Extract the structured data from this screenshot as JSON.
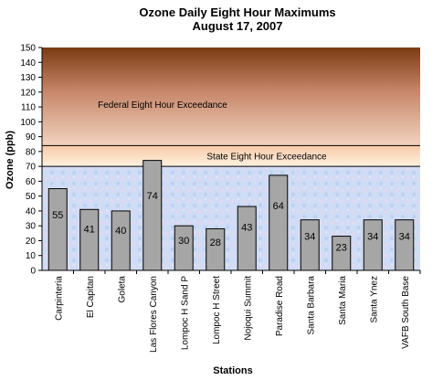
{
  "chart_data": {
    "type": "bar",
    "title": "Ozone Daily Eight Hour Maximums",
    "subtitle": "August 17, 2007",
    "xlabel": "Stations",
    "ylabel": "Ozone (ppb)",
    "ylim": [
      0,
      150
    ],
    "yticks": [
      0,
      10,
      20,
      30,
      40,
      50,
      60,
      70,
      80,
      90,
      100,
      110,
      120,
      130,
      140,
      150
    ],
    "categories": [
      "Carpinteria",
      "El Capitan",
      "Goleta",
      "Las Flores Canyon",
      "Lompoc H Sand P",
      "Lompoc H Street",
      "Nojoqui Summit",
      "Paradise Road",
      "Santa Barbara",
      "Santa Maria",
      "Santa Ynez",
      "VAFB South Base"
    ],
    "values": [
      55,
      41,
      40,
      74,
      30,
      28,
      43,
      64,
      34,
      23,
      34,
      34
    ],
    "data_labels": [
      "55",
      "41",
      "40",
      "74",
      "30",
      "28",
      "43",
      "64",
      "34",
      "23",
      "34",
      "34"
    ],
    "thresholds": [
      {
        "name": "Federal Eight Hour Exceedance",
        "value": 84
      },
      {
        "name": "State Eight Hour Exceedance",
        "value": 70
      }
    ],
    "grid": false,
    "legend": "none",
    "colors": {
      "bar": "#a6a6a6",
      "federal_band_top": "#7a3b12",
      "federal_band_bottom": "#f2d3bf",
      "state_band_top": "#f7c9a8",
      "state_band_bottom": "#fff1e0",
      "background": "#cfdcf5"
    }
  }
}
